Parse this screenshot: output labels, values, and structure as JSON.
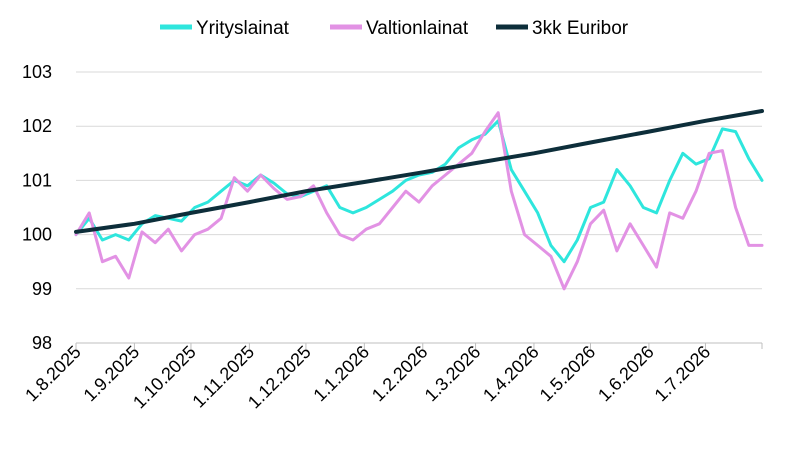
{
  "chart_data": {
    "type": "line",
    "title": "",
    "xlabel": "",
    "ylabel": "",
    "ylim": [
      98,
      103
    ],
    "yticks": [
      98,
      99,
      100,
      101,
      102,
      103
    ],
    "grid": "horizontal",
    "legend_position": "top",
    "x_start": "1.8.2025",
    "x_end": "31.7.2026",
    "x_tick_labels": [
      "1.8.2025",
      "1.9.2025",
      "1.10.2025",
      "1.11.2025",
      "1.12.2025",
      "1.1.2026",
      "1.2.2026",
      "1.3.2026",
      "1.4.2026",
      "1.5.2026",
      "1.6.2026",
      "1.7.2026"
    ],
    "series": [
      {
        "name": "Yrityslainat",
        "color": "#2ee6dd",
        "points": [
          [
            "1.8.2025",
            100.0
          ],
          [
            "8.8.2025",
            100.3
          ],
          [
            "15.8.2025",
            99.9
          ],
          [
            "22.8.2025",
            100.0
          ],
          [
            "29.8.2025",
            99.9
          ],
          [
            "5.9.2025",
            100.2
          ],
          [
            "12.9.2025",
            100.35
          ],
          [
            "19.9.2025",
            100.3
          ],
          [
            "26.9.2025",
            100.25
          ],
          [
            "3.10.2025",
            100.5
          ],
          [
            "10.10.2025",
            100.6
          ],
          [
            "17.10.2025",
            100.8
          ],
          [
            "24.10.2025",
            101.0
          ],
          [
            "31.10.2025",
            100.9
          ],
          [
            "7.11.2025",
            101.1
          ],
          [
            "14.11.2025",
            100.95
          ],
          [
            "21.11.2025",
            100.75
          ],
          [
            "28.11.2025",
            100.7
          ],
          [
            "5.12.2025",
            100.8
          ],
          [
            "12.12.2025",
            100.9
          ],
          [
            "19.12.2025",
            100.5
          ],
          [
            "26.12.2025",
            100.4
          ],
          [
            "2.1.2026",
            100.5
          ],
          [
            "9.1.2026",
            100.65
          ],
          [
            "16.1.2026",
            100.8
          ],
          [
            "23.1.2026",
            101.0
          ],
          [
            "30.1.2026",
            101.1
          ],
          [
            "6.2.2026",
            101.15
          ],
          [
            "13.2.2026",
            101.3
          ],
          [
            "20.2.2026",
            101.6
          ],
          [
            "27.2.2026",
            101.75
          ],
          [
            "6.3.2026",
            101.85
          ],
          [
            "13.3.2026",
            102.1
          ],
          [
            "20.3.2026",
            101.2
          ],
          [
            "27.3.2026",
            100.8
          ],
          [
            "3.4.2026",
            100.4
          ],
          [
            "10.4.2026",
            99.8
          ],
          [
            "17.4.2026",
            99.5
          ],
          [
            "24.4.2026",
            99.9
          ],
          [
            "1.5.2026",
            100.5
          ],
          [
            "8.5.2026",
            100.6
          ],
          [
            "15.5.2026",
            101.2
          ],
          [
            "22.5.2026",
            100.9
          ],
          [
            "29.5.2026",
            100.5
          ],
          [
            "5.6.2026",
            100.4
          ],
          [
            "12.6.2026",
            101.0
          ],
          [
            "19.6.2026",
            101.5
          ],
          [
            "26.6.2026",
            101.3
          ],
          [
            "3.7.2026",
            101.4
          ],
          [
            "10.7.2026",
            101.95
          ],
          [
            "17.7.2026",
            101.9
          ],
          [
            "24.7.2026",
            101.4
          ],
          [
            "31.7.2026",
            101.0
          ]
        ]
      },
      {
        "name": "Valtionlainat",
        "color": "#e292e4",
        "points": [
          [
            "1.8.2025",
            100.0
          ],
          [
            "8.8.2025",
            100.4
          ],
          [
            "15.8.2025",
            99.5
          ],
          [
            "22.8.2025",
            99.6
          ],
          [
            "29.8.2025",
            99.2
          ],
          [
            "5.9.2025",
            100.05
          ],
          [
            "12.9.2025",
            99.85
          ],
          [
            "19.9.2025",
            100.1
          ],
          [
            "26.9.2025",
            99.7
          ],
          [
            "3.10.2025",
            100.0
          ],
          [
            "10.10.2025",
            100.1
          ],
          [
            "17.10.2025",
            100.3
          ],
          [
            "24.10.2025",
            101.05
          ],
          [
            "31.10.2025",
            100.8
          ],
          [
            "7.11.2025",
            101.1
          ],
          [
            "14.11.2025",
            100.85
          ],
          [
            "21.11.2025",
            100.65
          ],
          [
            "28.11.2025",
            100.7
          ],
          [
            "5.12.2025",
            100.9
          ],
          [
            "12.12.2025",
            100.4
          ],
          [
            "19.12.2025",
            100.0
          ],
          [
            "26.12.2025",
            99.9
          ],
          [
            "2.1.2026",
            100.1
          ],
          [
            "9.1.2026",
            100.2
          ],
          [
            "16.1.2026",
            100.5
          ],
          [
            "23.1.2026",
            100.8
          ],
          [
            "30.1.2026",
            100.6
          ],
          [
            "6.2.2026",
            100.9
          ],
          [
            "13.2.2026",
            101.1
          ],
          [
            "20.2.2026",
            101.3
          ],
          [
            "27.2.2026",
            101.5
          ],
          [
            "6.3.2026",
            101.9
          ],
          [
            "13.3.2026",
            102.25
          ],
          [
            "20.3.2026",
            100.8
          ],
          [
            "27.3.2026",
            100.0
          ],
          [
            "3.4.2026",
            99.8
          ],
          [
            "10.4.2026",
            99.6
          ],
          [
            "17.4.2026",
            99.0
          ],
          [
            "24.4.2026",
            99.5
          ],
          [
            "1.5.2026",
            100.2
          ],
          [
            "8.5.2026",
            100.45
          ],
          [
            "15.5.2026",
            99.7
          ],
          [
            "22.5.2026",
            100.2
          ],
          [
            "29.5.2026",
            99.8
          ],
          [
            "5.6.2026",
            99.4
          ],
          [
            "12.6.2026",
            100.4
          ],
          [
            "19.6.2026",
            100.3
          ],
          [
            "26.6.2026",
            100.8
          ],
          [
            "3.7.2026",
            101.5
          ],
          [
            "10.7.2026",
            101.55
          ],
          [
            "17.7.2026",
            100.5
          ],
          [
            "24.7.2026",
            99.8
          ],
          [
            "31.7.2026",
            99.8
          ]
        ]
      },
      {
        "name": "3kk Euribor",
        "color": "#0d2e3a",
        "points": [
          [
            "1.8.2025",
            100.05
          ],
          [
            "1.9.2025",
            100.2
          ],
          [
            "1.10.2025",
            100.4
          ],
          [
            "1.11.2025",
            100.6
          ],
          [
            "1.12.2025",
            100.8
          ],
          [
            "1.1.2026",
            100.97
          ],
          [
            "1.2.2026",
            101.15
          ],
          [
            "1.3.2026",
            101.32
          ],
          [
            "1.4.2026",
            101.5
          ],
          [
            "1.5.2026",
            101.7
          ],
          [
            "1.6.2026",
            101.9
          ],
          [
            "1.7.2026",
            102.1
          ],
          [
            "31.7.2026",
            102.28
          ]
        ]
      }
    ]
  }
}
